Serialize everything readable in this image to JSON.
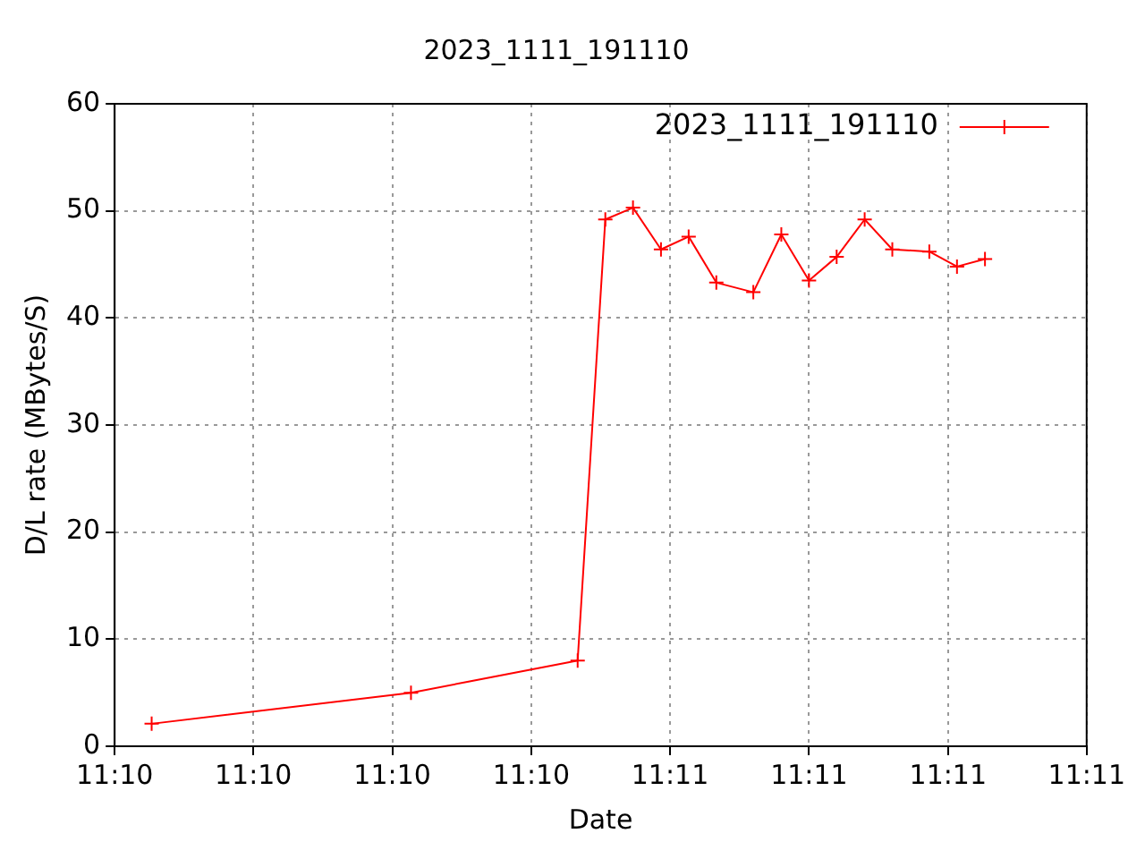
{
  "chart_data": {
    "type": "line",
    "title": "2023_1111_191110",
    "xlabel": "Date",
    "ylabel": "D/L rate (MBytes/S)",
    "x": [
      11.16153,
      11.16931,
      11.17431,
      11.17514,
      11.17597,
      11.17681,
      11.17764,
      11.17847,
      11.17958,
      11.18042,
      11.18125,
      11.18208,
      11.18292,
      11.18375,
      11.18486,
      11.18569,
      11.18653
    ],
    "series": [
      {
        "name": "2023_1111_191110",
        "color": "#ff0000",
        "values": [
          2.1,
          5.0,
          8.0,
          49.2,
          50.3,
          46.4,
          47.6,
          43.3,
          42.4,
          47.8,
          43.5,
          45.7,
          49.2,
          46.4,
          46.2,
          44.8,
          45.5
        ]
      }
    ],
    "xlim": [
      11.16042,
      11.18958
    ],
    "xticks": [
      {
        "value": 11.16042,
        "label": "11:10"
      },
      {
        "value": 11.16458,
        "label": "11:10"
      },
      {
        "value": 11.16875,
        "label": "11:10"
      },
      {
        "value": 11.17292,
        "label": "11:10"
      },
      {
        "value": 11.17708,
        "label": "11:11"
      },
      {
        "value": 11.18125,
        "label": "11:11"
      },
      {
        "value": 11.18542,
        "label": "11:11"
      },
      {
        "value": 11.18958,
        "label": "11:11"
      }
    ],
    "ylim": [
      0,
      60
    ],
    "yticks": [
      0,
      10,
      20,
      30,
      40,
      50,
      60
    ],
    "grid": true,
    "legend": "top right",
    "marker": "cross",
    "line_style": "solid"
  }
}
